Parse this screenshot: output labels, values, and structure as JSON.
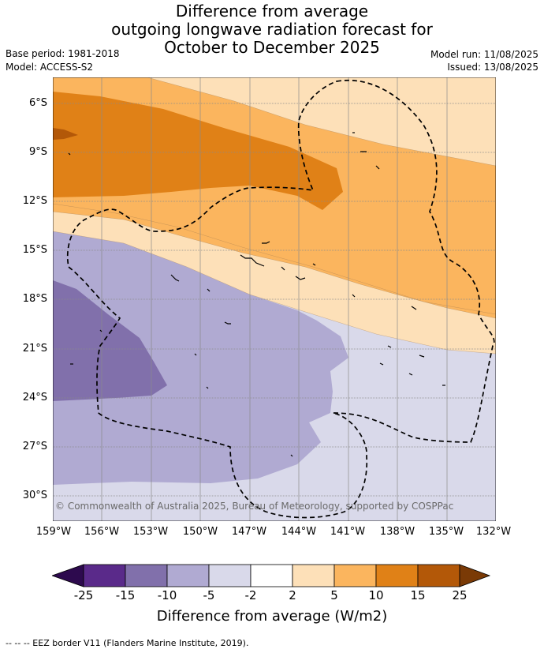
{
  "title": {
    "line1": "Difference from average",
    "line2": "outgoing longwave radiation forecast for",
    "line3": "October to December 2025"
  },
  "meta": {
    "base_period": "Base period: 1981-2018",
    "model": "Model: ACCESS-S2",
    "model_run": "Model run: 11/08/2025",
    "issued": "Issued: 13/08/2025"
  },
  "map": {
    "lat_labels": [
      "6°S",
      "9°S",
      "12°S",
      "15°S",
      "18°S",
      "21°S",
      "24°S",
      "27°S",
      "30°S"
    ],
    "lon_labels": [
      "159°W",
      "156°W",
      "153°W",
      "150°W",
      "147°W",
      "144°W",
      "141°W",
      "138°W",
      "135°W",
      "132°W"
    ],
    "copyright": "© Commonwealth of Australia 2025, Bureau of Meteorology, supported by COSPPac",
    "grid": true,
    "eez_style": "dashed"
  },
  "colorbar": {
    "title": "Difference from average (W/m2)",
    "ticks": [
      "-25",
      "-15",
      "-10",
      "-5",
      "-2",
      "2",
      "5",
      "10",
      "15",
      "25"
    ],
    "colors": {
      "below_-25": "#2d0a4e",
      "-25_to_-15": "#5a2a8a",
      "-15_to_-10": "#8170ab",
      "-10_to_-5": "#b0aad2",
      "-5_to_-2": "#d9d9ea",
      "-2_to_2": "#ffffff",
      "2_to_5": "#fde0b8",
      "5_to_10": "#fbb55e",
      "10_to_15": "#e08117",
      "15_to_25": "#b35808",
      "above_25": "#7a3a06"
    }
  },
  "footnote": "--  --  -- EEZ border V11 (Flanders Marine Institute, 2019)."
}
